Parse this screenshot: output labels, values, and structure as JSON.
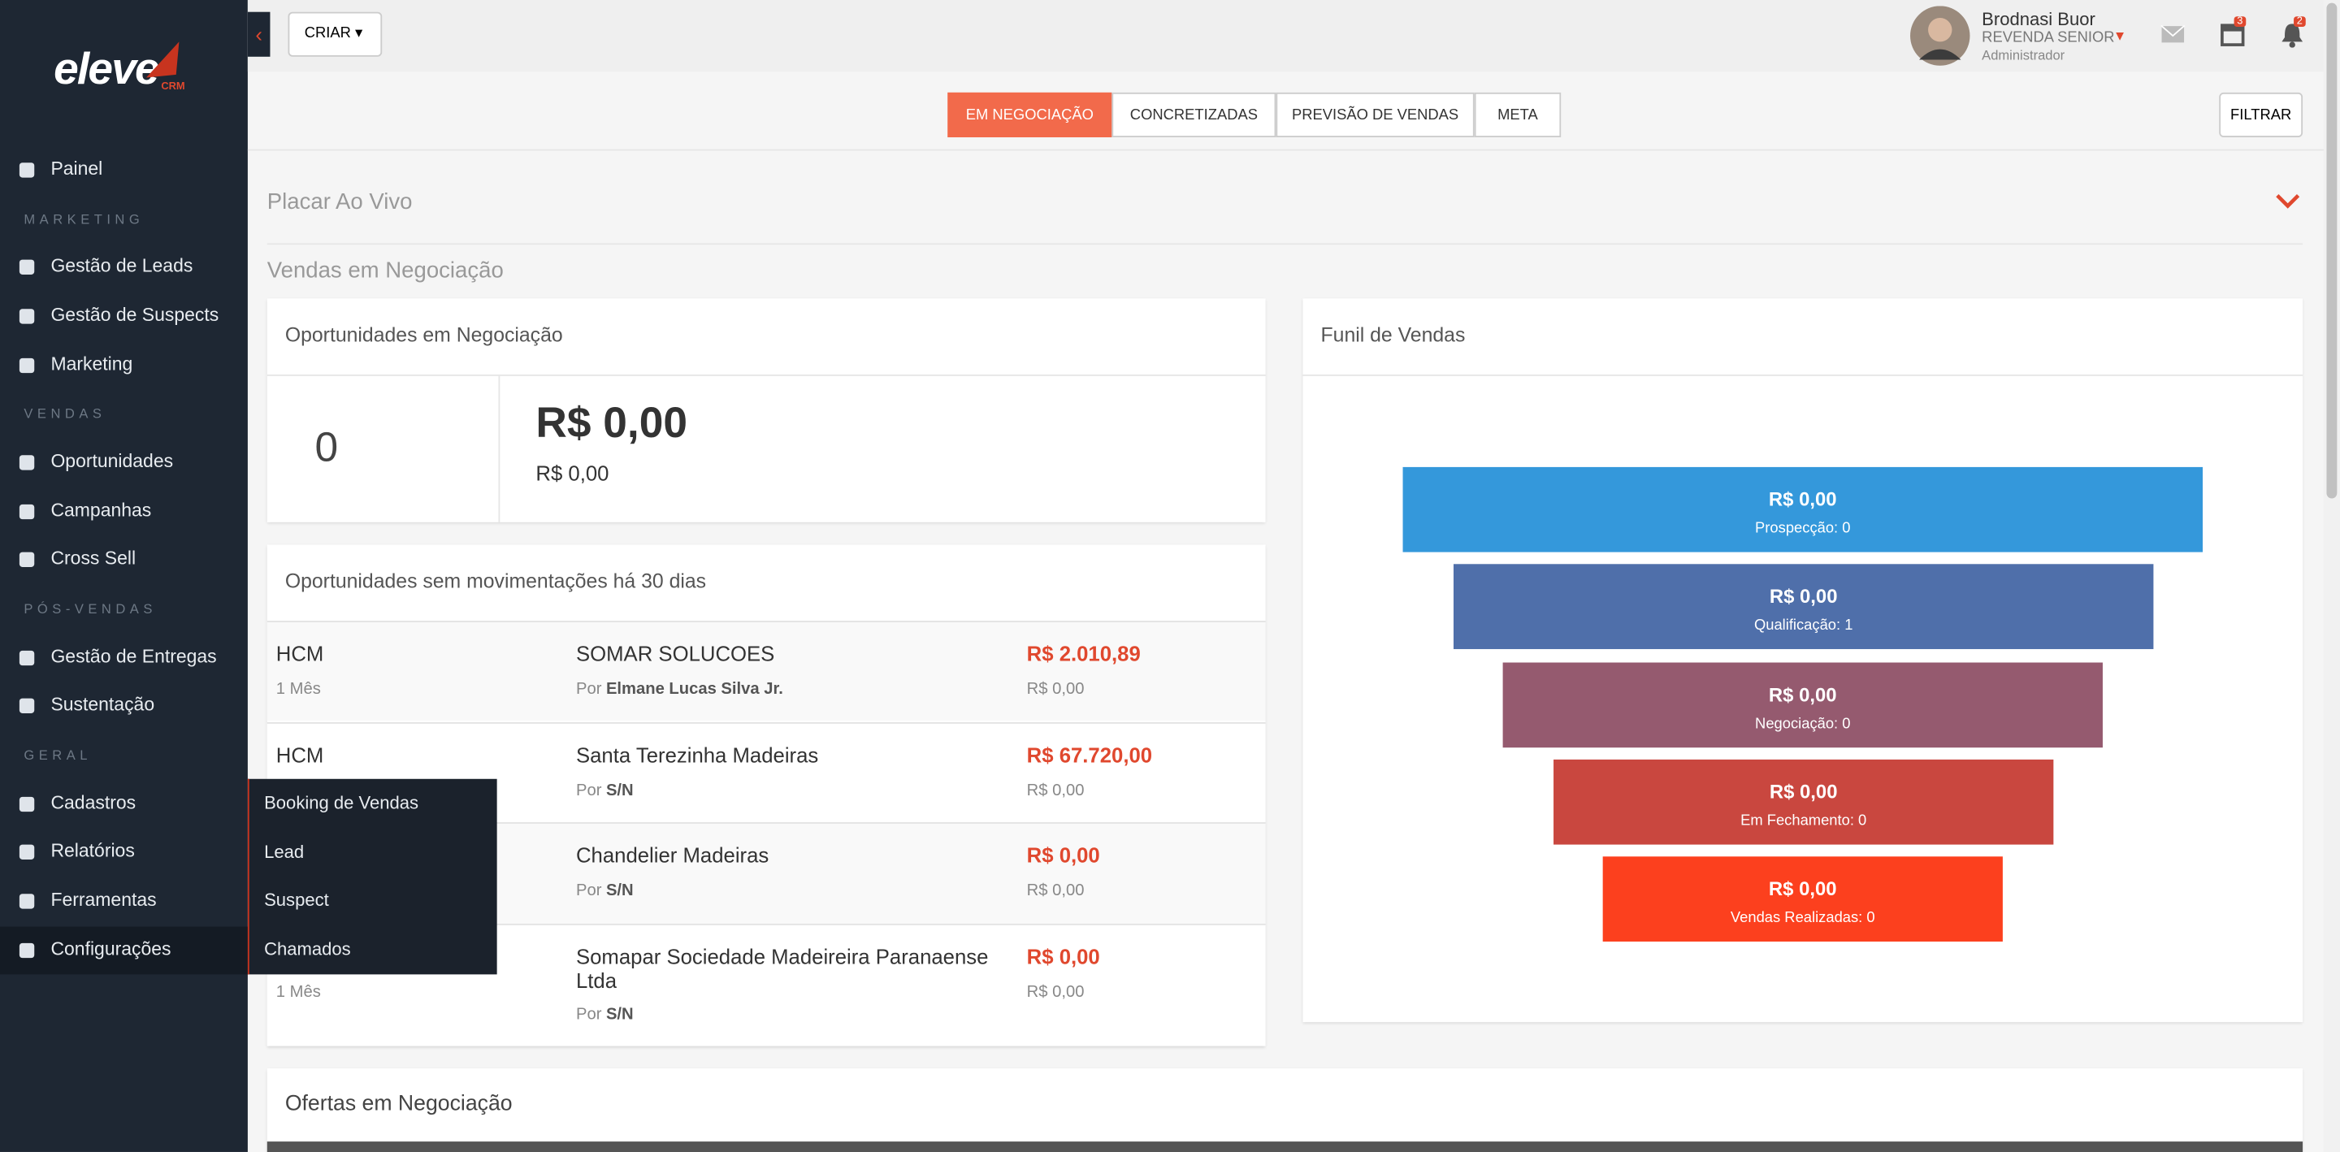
{
  "sidebar": {
    "logo": "eleve",
    "logo_badge": "CRM",
    "items": [
      {
        "label": "Painel"
      },
      {
        "heading": "MARKETING"
      },
      {
        "label": "Gestão de Leads"
      },
      {
        "label": "Gestão de Suspects"
      },
      {
        "label": "Marketing"
      },
      {
        "heading": "VENDAS"
      },
      {
        "label": "Oportunidades"
      },
      {
        "label": "Campanhas"
      },
      {
        "label": "Cross Sell"
      },
      {
        "heading": "PÓS-VENDAS"
      },
      {
        "label": "Gestão de Entregas"
      },
      {
        "label": "Sustentação"
      },
      {
        "heading": "GERAL"
      },
      {
        "label": "Cadastros"
      },
      {
        "label": "Relatórios"
      },
      {
        "label": "Ferramentas"
      },
      {
        "label": "Configurações",
        "active": true
      }
    ]
  },
  "submenu": [
    "Booking de Vendas",
    "Lead",
    "Suspect",
    "Chamados"
  ],
  "header": {
    "create": "CRIAR",
    "user": {
      "name": "Brodnasi Buor",
      "role": "REVENDA SENIOR",
      "subtitle": "Administrador"
    },
    "badges": {
      "calendar": 3,
      "notifications": 2
    }
  },
  "tabs": {
    "items": [
      "EM NEGOCIAÇÃO",
      "CONCRETIZADAS",
      "PREVISÃO DE VENDAS",
      "META"
    ],
    "active": 0,
    "filter": "FILTRAR"
  },
  "sections": {
    "live": "Placar Ao Vivo",
    "negotiation": "Vendas em Negociação"
  },
  "opportunities": {
    "title": "Oportunidades em Negociação",
    "count": "0",
    "total": "R$ 0,00",
    "subtotal": "R$ 0,00"
  },
  "stale": {
    "title": "Oportunidades sem movimentações há 30 dias",
    "rows": [
      {
        "type": "HCM",
        "time": "1 Mês",
        "company": "SOMAR SOLUCOES",
        "by_label": "Por",
        "by": "Elmane Lucas Silva Jr.",
        "value": "R$ 2.010,89",
        "subvalue": "R$ 0,00"
      },
      {
        "type": "HCM",
        "company": "Santa Terezinha Madeiras",
        "by_label": "Por",
        "by": "S/N",
        "value": "R$ 67.720,00",
        "subvalue": "R$ 0,00"
      },
      {
        "company": "Chandelier Madeiras",
        "by_label": "Por",
        "by": "S/N",
        "value": "R$ 0,00",
        "subvalue": "R$ 0,00"
      },
      {
        "time": "1 Mês",
        "company": "Somapar Sociedade Madeireira Paranaense Ltda",
        "by_label": "Por",
        "by": "S/N",
        "value": "R$ 0,00",
        "subvalue": "R$ 0,00"
      }
    ]
  },
  "funnel": {
    "title": "Funil de Vendas",
    "stages": [
      {
        "value": "R$ 0,00",
        "label": "Prospecção: 0",
        "color": "#3498db"
      },
      {
        "value": "R$ 0,00",
        "label": "Qualificação: 1",
        "color": "#4f6faa"
      },
      {
        "value": "R$ 0,00",
        "label": "Negociação: 0",
        "color": "#955a6f"
      },
      {
        "value": "R$ 0,00",
        "label": "Em Fechamento: 0",
        "color": "#c9473f"
      },
      {
        "value": "R$ 0,00",
        "label": "Vendas Realizadas: 0",
        "color": "#fc401e"
      }
    ]
  },
  "offers": {
    "title": "Ofertas em Negociação"
  }
}
